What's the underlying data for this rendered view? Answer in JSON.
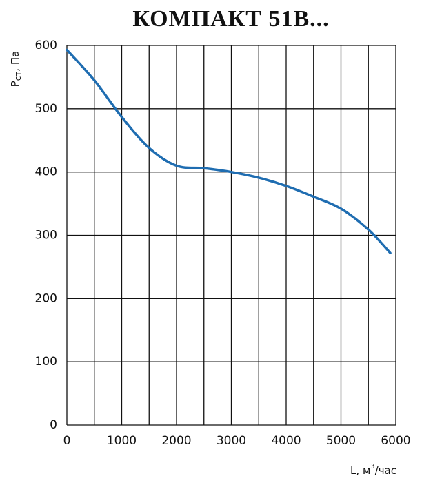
{
  "chart_data": {
    "type": "line",
    "title": "КОМПАКТ 51B...",
    "ylabel": {
      "main": "P",
      "sub": "ст",
      "rest": ", Па"
    },
    "xlabel": {
      "main": "L, м",
      "sup": "3",
      "rest": "/час"
    },
    "x": [
      0,
      500,
      1000,
      1500,
      2000,
      2500,
      3000,
      3500,
      4000,
      4500,
      5000,
      5500,
      5900
    ],
    "series": [
      {
        "color": "#1f6db1",
        "values": [
          593,
          545,
          487,
          438,
          410,
          406,
          400,
          391,
          378,
          361,
          342,
          309,
          272
        ]
      }
    ],
    "xlim": [
      0,
      6000
    ],
    "xticks": [
      0,
      1000,
      2000,
      3000,
      4000,
      5000,
      6000
    ],
    "xminor": [
      500,
      1500,
      2500,
      3500,
      4500,
      5500
    ],
    "ylim": [
      0,
      600
    ],
    "yticks": [
      0,
      100,
      200,
      300,
      400,
      500,
      600
    ],
    "grid": true
  }
}
